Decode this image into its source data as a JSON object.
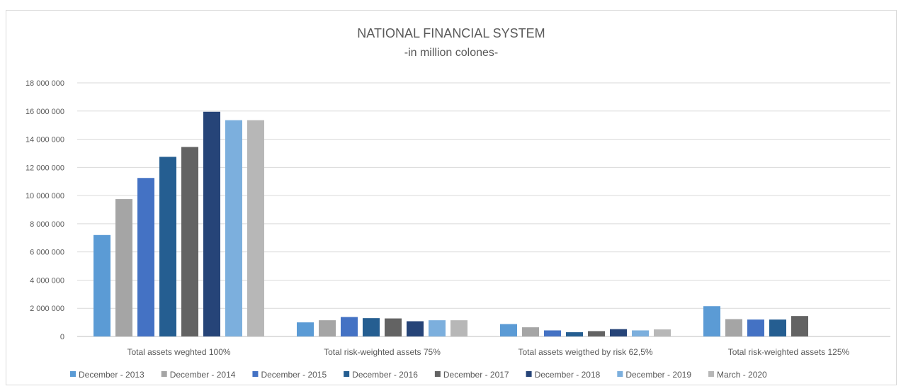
{
  "chart_data": {
    "type": "bar",
    "title": "NATIONAL FINANCIAL SYSTEM",
    "subtitle": "-in million colones-",
    "xlabel": "",
    "ylabel": "",
    "ylim": [
      0,
      18000000
    ],
    "yticks": [
      0,
      2000000,
      4000000,
      6000000,
      8000000,
      10000000,
      12000000,
      14000000,
      16000000,
      18000000
    ],
    "ytick_labels": [
      "0",
      "2 000 000",
      "4 000 000",
      "6 000 000",
      "8 000 000",
      "10 000 000",
      "12 000 000",
      "14 000 000",
      "16 000 000",
      "18 000 000"
    ],
    "grid": true,
    "legend_position": "bottom",
    "categories": [
      "Total assets weghted 100%",
      "Total risk-weighted assets 75%",
      "Total assets weigthed by risk 62,5%",
      "Total risk-weighted assets 125%"
    ],
    "series": [
      {
        "name": "December - 2013",
        "color": "#5b9bd5",
        "values": [
          7200000,
          1000000,
          880000,
          2150000
        ]
      },
      {
        "name": "December - 2014",
        "color": "#a5a5a5",
        "values": [
          9750000,
          1150000,
          650000,
          1230000
        ]
      },
      {
        "name": "December - 2015",
        "color": "#4472c4",
        "values": [
          11250000,
          1380000,
          430000,
          1200000
        ]
      },
      {
        "name": "December - 2016",
        "color": "#255e91",
        "values": [
          12750000,
          1300000,
          300000,
          1200000
        ]
      },
      {
        "name": "December - 2017",
        "color": "#636363",
        "values": [
          13450000,
          1280000,
          380000,
          1450000
        ]
      },
      {
        "name": "December - 2018",
        "color": "#264478",
        "values": [
          15950000,
          1080000,
          520000,
          0
        ]
      },
      {
        "name": "December - 2019",
        "color": "#7cafdd",
        "values": [
          15350000,
          1150000,
          430000,
          0
        ]
      },
      {
        "name": "March - 2020",
        "color": "#b7b7b7",
        "values": [
          15350000,
          1150000,
          500000,
          0
        ]
      }
    ]
  }
}
